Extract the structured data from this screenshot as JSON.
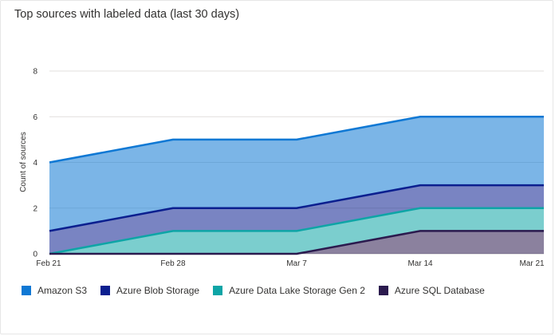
{
  "card": {
    "title": "Top sources with labeled data (last 30 days)"
  },
  "chart_data": {
    "type": "area",
    "stacked": true,
    "title": "Top sources with labeled data (last 30 days)",
    "xlabel": "",
    "ylabel": "Count of sources",
    "ylim": [
      0,
      8
    ],
    "yticks": [
      0,
      2,
      4,
      6,
      8
    ],
    "x": [
      "Feb 21",
      "Feb 28",
      "Mar 7",
      "Mar 14",
      "Mar 21"
    ],
    "grid": true,
    "legend_position": "bottom-left",
    "series": [
      {
        "name": "Amazon S3",
        "color": "#0f78d4",
        "values": [
          3,
          3,
          3,
          3,
          3
        ]
      },
      {
        "name": "Azure Blob Storage",
        "color": "#0b1f8f",
        "values": [
          1,
          1,
          1,
          1,
          1
        ]
      },
      {
        "name": "Azure Data Lake Storage Gen 2",
        "color": "#0ea5a6",
        "values": [
          0,
          1,
          1,
          1,
          1
        ]
      },
      {
        "name": "Azure SQL Database",
        "color": "#2b1a4e",
        "values": [
          0,
          0,
          0,
          1,
          1
        ]
      }
    ]
  }
}
